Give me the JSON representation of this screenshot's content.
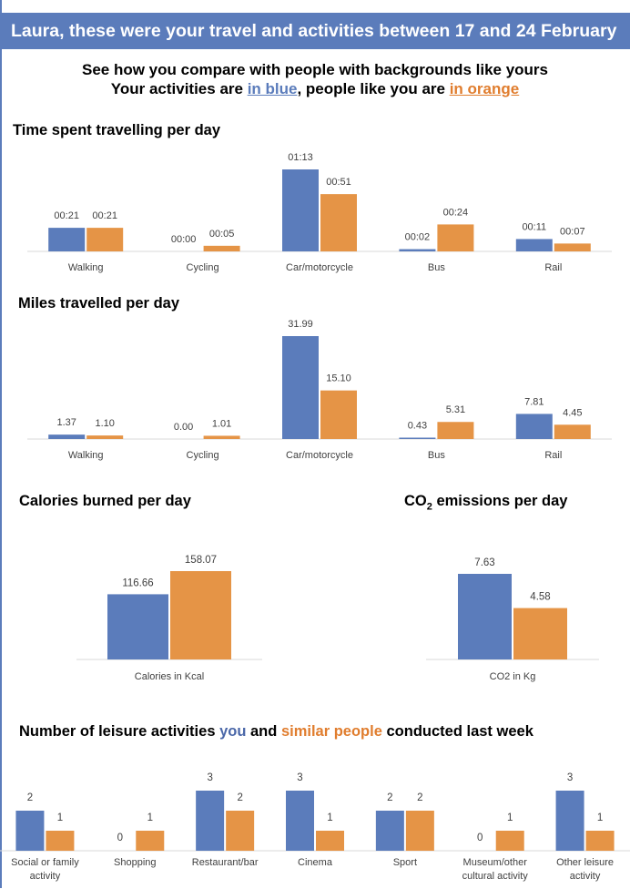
{
  "header": {
    "title": "Laura, these were your travel and activities between 17 and 24 February"
  },
  "intro": {
    "line1": "See how you compare with people with backgrounds like yours",
    "line2_prefix": "Your activities are ",
    "line2_blue": "in blue",
    "line2_middle": ", people like you are ",
    "line2_orange": "in orange"
  },
  "colors": {
    "you": "#5b7cbb",
    "similar": "#e59446"
  },
  "sections": {
    "time_title": "Time spent travelling per day",
    "miles_title": "Miles travelled per day",
    "calories_title": "Calories burned per day",
    "co2_title_prefix": "CO",
    "co2_title_sub": "2",
    "co2_title_suffix": " emissions per day",
    "leisure_title_part1": "Number of leisure activities ",
    "leisure_title_you": "you",
    "leisure_title_part2": " and ",
    "leisure_title_similar": "similar people",
    "leisure_title_part3": " conducted last week"
  },
  "chart_data": [
    {
      "id": "time",
      "type": "bar",
      "title": "Time spent travelling per day",
      "categories": [
        "Walking",
        "Cycling",
        "Car/motorcycle",
        "Bus",
        "Rail"
      ],
      "series": [
        {
          "values": [
            21,
            0,
            73,
            2,
            11
          ],
          "labels": [
            "00:21",
            "00:00",
            "01:13",
            "00:02",
            "00:11"
          ]
        },
        {
          "values": [
            21,
            5,
            51,
            24,
            7
          ],
          "labels": [
            "00:21",
            "00:05",
            "00:51",
            "00:24",
            "00:07"
          ]
        }
      ]
    },
    {
      "id": "miles",
      "type": "bar",
      "title": "Miles travelled per day",
      "categories": [
        "Walking",
        "Cycling",
        "Car/motorcycle",
        "Bus",
        "Rail"
      ],
      "series": [
        {
          "values": [
            1.37,
            0.0,
            31.99,
            0.43,
            7.81
          ],
          "labels": [
            "1.37",
            "0.00",
            "31.99",
            "0.43",
            "7.81"
          ]
        },
        {
          "values": [
            1.1,
            1.01,
            15.1,
            5.31,
            4.45
          ],
          "labels": [
            "1.10",
            "1.01",
            "15.10",
            "5.31",
            "4.45"
          ]
        }
      ]
    },
    {
      "id": "calories",
      "type": "bar",
      "title": "Calories burned per day",
      "categories": [
        "Calories in Kcal"
      ],
      "series": [
        {
          "values": [
            116.66
          ],
          "labels": [
            "116.66"
          ]
        },
        {
          "values": [
            158.07
          ],
          "labels": [
            "158.07"
          ]
        }
      ]
    },
    {
      "id": "co2",
      "type": "bar",
      "title": "CO2 emissions per day",
      "categories": [
        "CO2 in Kg"
      ],
      "series": [
        {
          "values": [
            7.63
          ],
          "labels": [
            "7.63"
          ]
        },
        {
          "values": [
            4.58
          ],
          "labels": [
            "4.58"
          ]
        }
      ]
    },
    {
      "id": "leisure",
      "type": "bar",
      "title": "Number of leisure activities you and similar people conducted last week",
      "categories": [
        "Social or family activity",
        "Shopping",
        "Restaurant/bar",
        "Cinema",
        "Sport",
        "Museum/other cultural activity",
        "Other leisure activity"
      ],
      "category_lines": [
        [
          "Social or family",
          "activity"
        ],
        [
          "Shopping"
        ],
        [
          "Restaurant/bar"
        ],
        [
          "Cinema"
        ],
        [
          "Sport"
        ],
        [
          "Museum/other",
          "cultural activity"
        ],
        [
          "Other leisure",
          "activity"
        ]
      ],
      "series": [
        {
          "values": [
            2,
            0,
            3,
            3,
            2,
            0,
            3
          ],
          "labels": [
            "2",
            "0",
            "3",
            "3",
            "2",
            "0",
            "3"
          ]
        },
        {
          "values": [
            1,
            1,
            2,
            1,
            2,
            1,
            1
          ],
          "labels": [
            "1",
            "1",
            "2",
            "1",
            "2",
            "1",
            "1"
          ]
        }
      ]
    }
  ]
}
